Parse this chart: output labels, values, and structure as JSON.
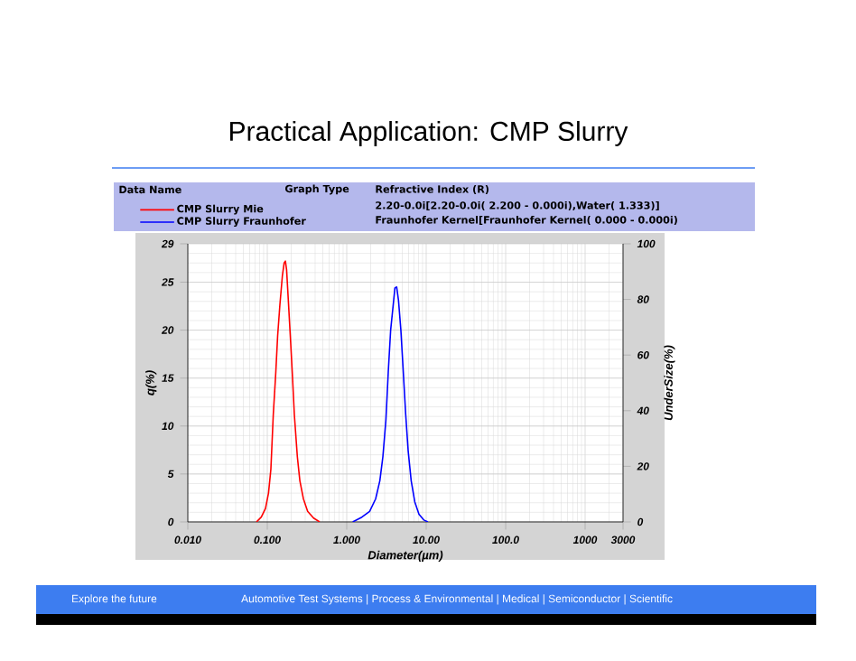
{
  "chart_data": {
    "type": "line",
    "title": "Practical Application: CMP Slurry",
    "xlabel": "Diameter(µm)",
    "ylabel": "q(%)",
    "y2label": "UnderSize(%)",
    "legend_title": "Data Name",
    "log": "x",
    "grid": true,
    "legend": "top",
    "marker": "none",
    "line_style": "solid",
    "xlim": [
      0.01,
      3000
    ],
    "xticks": [
      {
        "value": 0.01,
        "label": "0.010"
      },
      {
        "value": 0.1,
        "label": "0.100"
      },
      {
        "value": 1,
        "label": "1.000"
      },
      {
        "value": 10,
        "label": "10.00"
      },
      {
        "value": 100,
        "label": "100.0"
      },
      {
        "value": 1000,
        "label": "1000"
      },
      {
        "value": 3000,
        "label": "3000"
      }
    ],
    "ylim": [
      0,
      29
    ],
    "yticks": [
      0,
      5,
      10,
      15,
      20,
      25,
      29
    ],
    "y2lim": [
      0,
      100
    ],
    "y2ticks": [
      0,
      20,
      40,
      60,
      80,
      100
    ],
    "series": [
      {
        "name": "CMP Slurry Mie",
        "color": "#ff0000",
        "x": [
          0.0731,
          0.084,
          0.0949,
          0.1036,
          0.111,
          0.119,
          0.128,
          0.135,
          0.144,
          0.155,
          0.163,
          0.169,
          0.175,
          0.184,
          0.197,
          0.208,
          0.219,
          0.239,
          0.257,
          0.285,
          0.322,
          0.383,
          0.456
        ],
        "values": [
          0,
          0.5,
          1.4,
          3,
          5.5,
          11.2,
          15.6,
          19.4,
          22.6,
          25.7,
          27.0,
          27.2,
          26.3,
          23.1,
          18.7,
          15.0,
          11.2,
          6.8,
          4.3,
          2.4,
          1.1,
          0.4,
          0
        ]
      },
      {
        "name": "CMP Slurry Fraunhofer",
        "color": "#0000ff",
        "x": [
          1.19,
          1.55,
          1.94,
          2.31,
          2.61,
          2.85,
          3.11,
          3.33,
          3.57,
          3.83,
          4.04,
          4.25,
          4.48,
          4.8,
          5.15,
          5.52,
          5.93,
          6.47,
          7.18,
          8.11,
          9.33,
          10.5
        ],
        "values": [
          0,
          0.5,
          1.1,
          2.4,
          4.3,
          6.8,
          10.6,
          15.6,
          20.0,
          22.5,
          24.4,
          24.5,
          23.1,
          20.0,
          15.6,
          11.2,
          7.4,
          4.3,
          2.1,
          0.8,
          0.2,
          0
        ]
      }
    ],
    "annotations": [
      "Graph Type",
      "Refractive Index (R)",
      "2.20-0.0i[2.20-0.0i( 2.200 -  0.000i),Water( 1.333)]",
      "Fraunhofer Kernel[Fraunhofer Kernel( 0.000 -  0.000i)",
      "Explore the future",
      "Automotive Test Systems | Process & Environmental | Medical | Semiconductor | Scientific"
    ]
  }
}
